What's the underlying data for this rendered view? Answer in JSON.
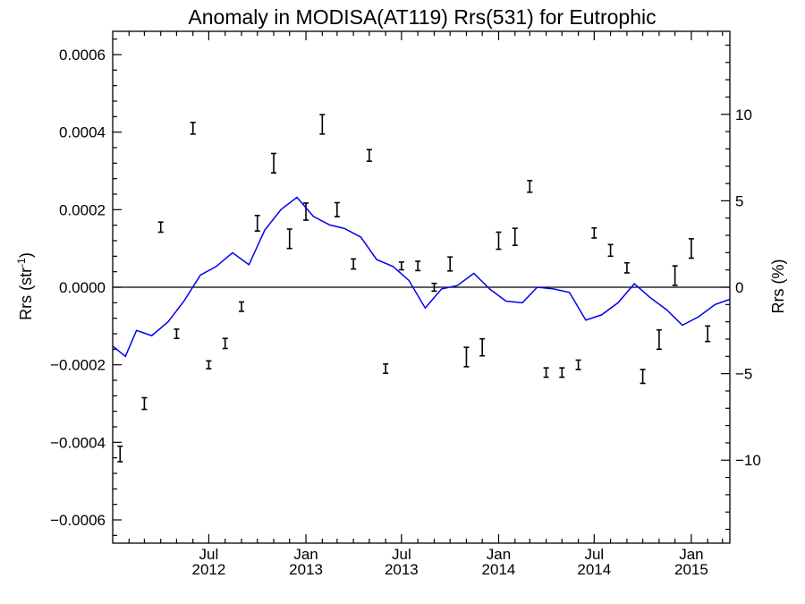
{
  "chart_data": {
    "type": "line",
    "title": "Anomaly in MODISA(AT119) Rrs(531) for Eutrophic",
    "ylabel": "Rrs (str",
    "ylabel_sup": "-1",
    "ylabel_close": ")",
    "y2label": "Rrs (%)",
    "ylim": [
      -0.00066,
      0.00066
    ],
    "y2lim": [
      -14.8,
      14.8
    ],
    "yticks": [
      -0.0006,
      -0.0004,
      -0.0002,
      0.0,
      0.0002,
      0.0004,
      0.0006
    ],
    "ytick_labels": [
      "−0.0006",
      "−0.0004",
      "−0.0002",
      "0.0000",
      "0.0002",
      "0.0004",
      "0.0006"
    ],
    "y2ticks": [
      -10,
      -5,
      0,
      5,
      10
    ],
    "y2tick_labels": [
      "−10",
      "−5",
      "0",
      "5",
      "10"
    ],
    "xlim": [
      "2012-01-01",
      "2015-03-15"
    ],
    "xticks": [
      {
        "date": "2012-07-01",
        "month": "Jul",
        "year": "2012"
      },
      {
        "date": "2013-01-01",
        "month": "Jan",
        "year": "2013"
      },
      {
        "date": "2013-07-01",
        "month": "Jul",
        "year": "2013"
      },
      {
        "date": "2014-01-01",
        "month": "Jan",
        "year": "2014"
      },
      {
        "date": "2014-07-01",
        "month": "Jul",
        "year": "2014"
      },
      {
        "date": "2015-01-01",
        "month": "Jan",
        "year": "2015"
      }
    ],
    "zero_line": true,
    "line_color": "#0000ee",
    "errorbar_color": "#000000",
    "series": [
      {
        "kind": "line",
        "axis": "right",
        "x": [
          "2012-01-01",
          "2012-01-25",
          "2012-02-15",
          "2012-03-15",
          "2012-04-15",
          "2012-05-15",
          "2012-06-15",
          "2012-07-15",
          "2012-08-15",
          "2012-09-15",
          "2012-10-15",
          "2012-11-15",
          "2012-12-15",
          "2013-01-15",
          "2013-02-15",
          "2013-03-15",
          "2013-04-15",
          "2013-05-15",
          "2013-06-15",
          "2013-07-15",
          "2013-08-15",
          "2013-09-15",
          "2013-10-15",
          "2013-11-15",
          "2013-12-15",
          "2014-01-15",
          "2014-02-15",
          "2014-03-15",
          "2014-04-15",
          "2014-05-15",
          "2014-06-15",
          "2014-07-15",
          "2014-08-15",
          "2014-09-15",
          "2014-10-15",
          "2014-11-15",
          "2014-12-15",
          "2015-01-15",
          "2015-02-15",
          "2015-03-15"
        ],
        "y": [
          -3.4,
          -4.0,
          -2.5,
          -2.8,
          -2.0,
          -0.8,
          0.7,
          1.2,
          2.0,
          1.3,
          3.3,
          4.5,
          5.2,
          4.1,
          3.6,
          3.4,
          2.9,
          1.6,
          1.2,
          0.4,
          -1.2,
          -0.1,
          0.1,
          0.8,
          -0.1,
          -0.8,
          -0.9,
          0.0,
          -0.1,
          -0.3,
          -1.9,
          -1.6,
          -0.9,
          0.2,
          -0.6,
          -1.3,
          -2.2,
          -1.7,
          -1.0,
          -0.7
        ]
      },
      {
        "kind": "errorbar",
        "axis": "left",
        "x": [
          "2012-01-15",
          "2012-03-01",
          "2012-04-01",
          "2012-05-01",
          "2012-06-01",
          "2012-07-01",
          "2012-08-01",
          "2012-09-01",
          "2012-10-01",
          "2012-11-01",
          "2012-12-01",
          "2013-01-01",
          "2013-02-01",
          "2013-03-01",
          "2013-04-01",
          "2013-05-01",
          "2013-06-01",
          "2013-07-01",
          "2013-08-01",
          "2013-09-01",
          "2013-10-01",
          "2013-11-01",
          "2013-12-01",
          "2014-01-01",
          "2014-02-01",
          "2014-03-01",
          "2014-04-01",
          "2014-05-01",
          "2014-06-01",
          "2014-07-01",
          "2014-08-01",
          "2014-09-01",
          "2014-10-01",
          "2014-11-01",
          "2014-12-01",
          "2015-01-01",
          "2015-02-01"
        ],
        "y": [
          -0.00043,
          -0.0003,
          0.000155,
          -0.00012,
          0.00041,
          -0.0002,
          -0.000145,
          -5e-05,
          0.000165,
          0.00032,
          0.000125,
          0.000195,
          0.00042,
          0.0002,
          6e-05,
          0.00034,
          -0.00021,
          5.5e-05,
          5.5e-05,
          0.0,
          6e-05,
          -0.00018,
          -0.000155,
          0.00012,
          0.00013,
          0.00026,
          -0.00022,
          -0.00022,
          -0.0002,
          0.00014,
          9.5e-05,
          5e-05,
          -0.00023,
          -0.000135,
          3e-05,
          0.0001,
          -0.00012
        ],
        "err": [
          2e-05,
          1.5e-05,
          1.3e-05,
          1.2e-05,
          1.5e-05,
          1e-05,
          1.3e-05,
          1.2e-05,
          2e-05,
          2.5e-05,
          2.5e-05,
          2.2e-05,
          2.5e-05,
          1.8e-05,
          1.3e-05,
          1.5e-05,
          1.2e-05,
          1e-05,
          1.2e-05,
          1e-05,
          1.8e-05,
          2.5e-05,
          2.2e-05,
          2.2e-05,
          2.2e-05,
          1.5e-05,
          1.2e-05,
          1.2e-05,
          1.2e-05,
          1.3e-05,
          1.5e-05,
          1.3e-05,
          1.8e-05,
          2.5e-05,
          2.5e-05,
          2.5e-05,
          2e-05
        ]
      }
    ]
  }
}
